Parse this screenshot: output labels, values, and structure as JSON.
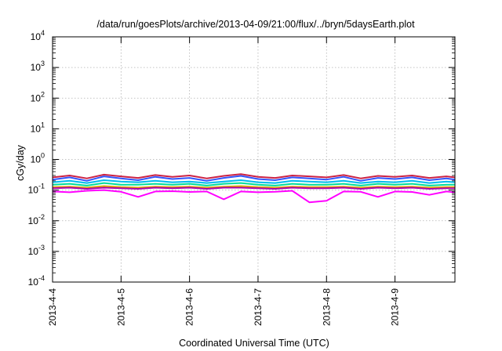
{
  "chart_data": {
    "type": "line",
    "title": "/data/run/goesPlots/archive/2013-04-09/21:00/flux/../bryn/5daysEarth.plot",
    "xlabel": "Coordinated Universal Time (UTC)",
    "ylabel": "cGy/day",
    "y_scale": "log",
    "ylim": [
      0.0001,
      10000
    ],
    "xlim": [
      "2013-04-04 00:00",
      "2013-04-09 21:00"
    ],
    "grid": true,
    "legend": "none",
    "x_tick_labels": [
      "2013-4-4",
      "2013-4-5",
      "2013-4-6",
      "2013-4-7",
      "2013-4-8",
      "2013-4-9"
    ],
    "y_ticks": [
      {
        "base": "10",
        "exp": "-4"
      },
      {
        "base": "10",
        "exp": "-3"
      },
      {
        "base": "10",
        "exp": "-2"
      },
      {
        "base": "10",
        "exp": "-1"
      },
      {
        "base": "10",
        "exp": "0"
      },
      {
        "base": "10",
        "exp": "1"
      },
      {
        "base": "10",
        "exp": "2"
      },
      {
        "base": "10",
        "exp": "3"
      },
      {
        "base": "10",
        "exp": "4"
      }
    ],
    "x": [
      "2013-04-04 00:00",
      "2013-04-04 06:00",
      "2013-04-04 12:00",
      "2013-04-04 18:00",
      "2013-04-05 00:00",
      "2013-04-05 06:00",
      "2013-04-05 12:00",
      "2013-04-05 18:00",
      "2013-04-06 00:00",
      "2013-04-06 06:00",
      "2013-04-06 12:00",
      "2013-04-06 18:00",
      "2013-04-07 00:00",
      "2013-04-07 06:00",
      "2013-04-07 12:00",
      "2013-04-07 18:00",
      "2013-04-08 00:00",
      "2013-04-08 06:00",
      "2013-04-08 12:00",
      "2013-04-08 18:00",
      "2013-04-09 00:00",
      "2013-04-09 06:00",
      "2013-04-09 12:00",
      "2013-04-09 18:00",
      "2013-04-09 21:00"
    ],
    "series": [
      {
        "color": "#cc2244",
        "values": [
          0.26,
          0.3,
          0.24,
          0.32,
          0.28,
          0.25,
          0.31,
          0.27,
          0.3,
          0.24,
          0.29,
          0.33,
          0.27,
          0.25,
          0.3,
          0.28,
          0.26,
          0.31,
          0.24,
          0.29,
          0.27,
          0.3,
          0.25,
          0.28,
          0.26
        ]
      },
      {
        "color": "#3355ff",
        "values": [
          0.22,
          0.26,
          0.2,
          0.28,
          0.24,
          0.21,
          0.27,
          0.23,
          0.25,
          0.2,
          0.25,
          0.29,
          0.23,
          0.21,
          0.26,
          0.24,
          0.22,
          0.27,
          0.2,
          0.25,
          0.23,
          0.26,
          0.21,
          0.24,
          0.22
        ]
      },
      {
        "color": "#00bbee",
        "values": [
          0.18,
          0.2,
          0.17,
          0.21,
          0.19,
          0.18,
          0.2,
          0.18,
          0.19,
          0.17,
          0.19,
          0.21,
          0.18,
          0.17,
          0.2,
          0.19,
          0.18,
          0.2,
          0.17,
          0.19,
          0.18,
          0.2,
          0.17,
          0.19,
          0.18
        ]
      },
      {
        "color": "#00dd99",
        "values": [
          0.15,
          0.16,
          0.14,
          0.17,
          0.15,
          0.15,
          0.16,
          0.15,
          0.16,
          0.14,
          0.16,
          0.17,
          0.15,
          0.14,
          0.16,
          0.15,
          0.15,
          0.16,
          0.14,
          0.16,
          0.15,
          0.16,
          0.14,
          0.15,
          0.15
        ]
      },
      {
        "color": "#ddaa00",
        "values": [
          0.125,
          0.13,
          0.12,
          0.135,
          0.125,
          0.12,
          0.13,
          0.125,
          0.13,
          0.12,
          0.13,
          0.135,
          0.125,
          0.12,
          0.13,
          0.125,
          0.125,
          0.13,
          0.12,
          0.13,
          0.125,
          0.13,
          0.12,
          0.125,
          0.125
        ]
      },
      {
        "color": "#aa00aa",
        "values": [
          0.115,
          0.12,
          0.11,
          0.12,
          0.115,
          0.11,
          0.12,
          0.115,
          0.12,
          0.11,
          0.12,
          0.12,
          0.115,
          0.11,
          0.12,
          0.115,
          0.115,
          0.12,
          0.11,
          0.12,
          0.115,
          0.12,
          0.11,
          0.115,
          0.115
        ]
      },
      {
        "color": "#ff00ff",
        "values": [
          0.09,
          0.085,
          0.095,
          0.1,
          0.088,
          0.06,
          0.09,
          0.092,
          0.087,
          0.09,
          0.05,
          0.09,
          0.085,
          0.088,
          0.095,
          0.04,
          0.045,
          0.09,
          0.088,
          0.06,
          0.09,
          0.087,
          0.07,
          0.09,
          0.085
        ]
      }
    ]
  }
}
